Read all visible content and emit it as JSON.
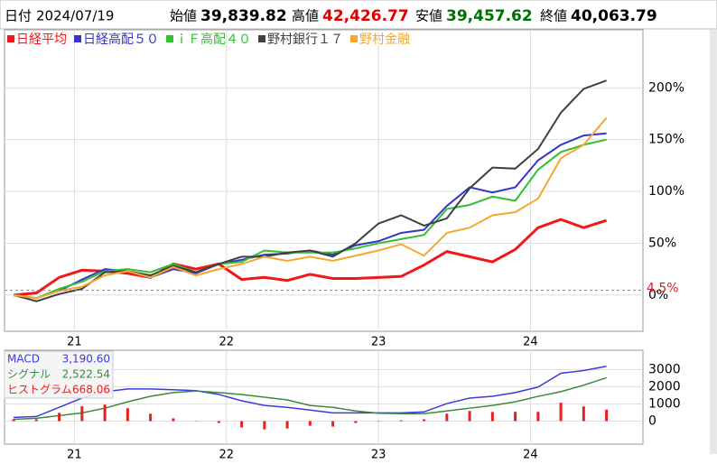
{
  "header": {
    "date_label": "日付",
    "date": "2024/07/19",
    "prices": [
      {
        "label": "始値",
        "value": "39,839.82",
        "color": "#000000"
      },
      {
        "label": "高値",
        "value": "42,426.77",
        "color": "#e00000"
      },
      {
        "label": "安値",
        "value": "39,457.62",
        "color": "#007000"
      },
      {
        "label": "終値",
        "value": "40,063.79",
        "color": "#000000"
      }
    ]
  },
  "chart_data": [
    {
      "type": "line",
      "grid": true,
      "x": [
        20.6,
        20.75,
        20.9,
        21.05,
        21.2,
        21.35,
        21.5,
        21.65,
        21.8,
        21.95,
        22.1,
        22.25,
        22.4,
        22.55,
        22.7,
        22.85,
        23.0,
        23.15,
        23.3,
        23.45,
        23.6,
        23.75,
        23.9,
        24.05,
        24.2,
        24.35,
        24.5
      ],
      "xlim": [
        20.54,
        24.74
      ],
      "xticks": [
        21,
        22,
        23,
        24
      ],
      "ylim": [
        -35,
        256
      ],
      "yticks": [
        {
          "value": 0,
          "label": "0%"
        },
        {
          "value": 50,
          "label": "50%"
        },
        {
          "value": 100,
          "label": "100%"
        },
        {
          "value": 150,
          "label": "150%"
        },
        {
          "value": 200,
          "label": "200%"
        }
      ],
      "annotation": {
        "value": 4.5,
        "label": "4.5%",
        "color": "#e02020"
      },
      "series": [
        {
          "name": "日経平均",
          "color": "#f01818",
          "values": [
            0,
            2,
            17,
            24,
            23,
            21,
            17,
            30,
            25,
            30,
            15,
            17,
            14,
            20,
            16,
            16,
            17,
            18,
            29,
            42,
            37,
            32,
            44,
            65,
            73,
            65,
            72
          ]
        },
        {
          "name": "日経高配５０",
          "color": "#3535c8",
          "values": [
            0,
            -3,
            4,
            15,
            25,
            23,
            17,
            25,
            21,
            30,
            34,
            39,
            40,
            43,
            39,
            48,
            52,
            60,
            63,
            86,
            104,
            99,
            104,
            130,
            145,
            154,
            156
          ]
        },
        {
          "name": "ｉＦ高配４０",
          "color": "#30c030",
          "values": [
            0,
            -3,
            6,
            13,
            23,
            25,
            22,
            30,
            22,
            30,
            32,
            43,
            41,
            41,
            41,
            45,
            50,
            54,
            58,
            83,
            87,
            95,
            91,
            121,
            138,
            145,
            150
          ]
        },
        {
          "name": "野村銀行１７",
          "color": "#404040",
          "values": [
            0,
            -6,
            1,
            6,
            22,
            23,
            19,
            28,
            22,
            30,
            37,
            37,
            41,
            43,
            37,
            50,
            69,
            77,
            67,
            74,
            103,
            123,
            122,
            141,
            176,
            199,
            207
          ]
        },
        {
          "name": "野村金融",
          "color": "#f5a830",
          "values": [
            0,
            -3,
            4,
            8,
            19,
            23,
            17,
            27,
            19,
            25,
            30,
            37,
            33,
            37,
            33,
            38,
            43,
            49,
            38,
            60,
            65,
            77,
            80,
            93,
            132,
            145,
            171
          ]
        }
      ]
    },
    {
      "type": "macd",
      "grid": true,
      "x": [
        20.6,
        20.75,
        20.9,
        21.05,
        21.2,
        21.35,
        21.5,
        21.65,
        21.8,
        21.95,
        22.1,
        22.25,
        22.4,
        22.55,
        22.7,
        22.85,
        23.0,
        23.15,
        23.3,
        23.45,
        23.6,
        23.75,
        23.9,
        24.05,
        24.2,
        24.35,
        24.5
      ],
      "xlim": [
        20.54,
        24.74
      ],
      "xticks": [
        21,
        22,
        23,
        24
      ],
      "ylim": [
        -1340,
        4120
      ],
      "yticks": [
        0,
        1000,
        2000,
        3000
      ],
      "series": [
        {
          "name": "MACD",
          "latest": "3,190.60",
          "style": "line",
          "color": "#3a3ae0",
          "values": [
            214,
            267,
            800,
            1340,
            1710,
            1870,
            1870,
            1820,
            1770,
            1550,
            1180,
            910,
            800,
            640,
            480,
            480,
            480,
            480,
            535,
            1020,
            1340,
            1440,
            1660,
            1980,
            2780,
            2940,
            3190
          ]
        },
        {
          "name": "シグナル",
          "latest": "2,522.54",
          "style": "line",
          "color": "#3a8a3a",
          "values": [
            107,
            160,
            320,
            480,
            750,
            1120,
            1440,
            1660,
            1750,
            1660,
            1550,
            1390,
            1230,
            910,
            800,
            590,
            460,
            430,
            430,
            590,
            750,
            910,
            1120,
            1440,
            1710,
            2090,
            2522
          ]
        },
        {
          "name": "ヒストグラム",
          "latest": "668.06",
          "style": "bar",
          "color": "#e82020",
          "values": [
            107,
            107,
            480,
            860,
            960,
            750,
            430,
            160,
            20,
            -110,
            -370,
            -480,
            -430,
            -270,
            -320,
            -110,
            20,
            50,
            105,
            430,
            590,
            530,
            540,
            540,
            1070,
            850,
            668
          ]
        }
      ]
    }
  ]
}
